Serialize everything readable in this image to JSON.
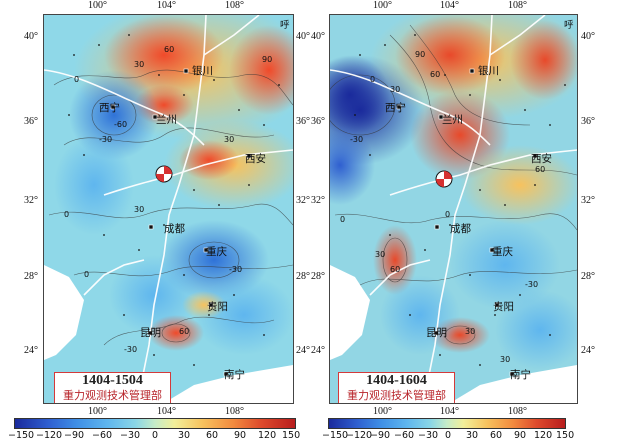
{
  "panels": [
    {
      "id": "left",
      "period": "1404-1504",
      "organization": "重力观测技术管理部",
      "lon_ticks": [
        "100°",
        "104°",
        "108°"
      ],
      "lat_ticks": [
        "40°",
        "36°",
        "32°",
        "28°",
        "24°"
      ],
      "corner_label": "呼",
      "cities": [
        "银川",
        "西宁",
        "兰州",
        "西安",
        "成都",
        "重庆",
        "贵阳",
        "昆明",
        "南宁"
      ],
      "contour_labels": [
        "0",
        "30",
        "60",
        "-30",
        "-60",
        "90",
        "30",
        "0",
        "-30",
        "30",
        "60",
        "0",
        "-30"
      ]
    },
    {
      "id": "right",
      "period": "1404-1604",
      "organization": "重力观测技术管理部",
      "lon_ticks": [
        "100°",
        "104°",
        "108°"
      ],
      "lat_ticks": [
        "40°",
        "36°",
        "32°",
        "28°",
        "24°"
      ],
      "corner_label": "呼",
      "cities": [
        "银川",
        "西宁",
        "兰州",
        "西安",
        "成都",
        "重庆",
        "贵阳",
        "昆明",
        "南宁"
      ],
      "contour_labels": [
        "90",
        "60",
        "30",
        "0",
        "-30",
        "60",
        "30",
        "0",
        "-30",
        "0",
        "30",
        "60",
        "30"
      ]
    }
  ],
  "colorbar": {
    "ticks": [
      "−150",
      "−120",
      "−90",
      "−60",
      "−30",
      "0",
      "30",
      "60",
      "90",
      "120",
      "150"
    ],
    "colors": [
      "#1a2a9c",
      "#2f5fd0",
      "#3f8fe6",
      "#5fb6ee",
      "#8ad6e6",
      "#c6ecc8",
      "#f2ef9a",
      "#f7c25e",
      "#f28a3e",
      "#de4a2c",
      "#b81d1d"
    ]
  },
  "markers": {
    "focal_mechanism": "beachball-icon"
  }
}
